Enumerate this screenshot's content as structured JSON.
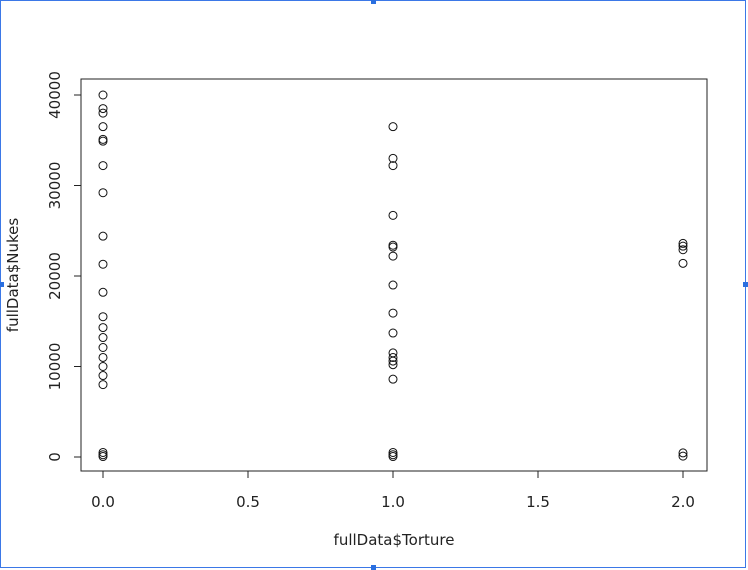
{
  "chart_data": {
    "type": "scatter",
    "title": "",
    "xlabel": "fullData$Torture",
    "ylabel": "fullData$Nukes",
    "xlim": [
      -0.1,
      2.1
    ],
    "ylim": [
      -1500,
      42000
    ],
    "x_ticks": [
      "0.0",
      "0.5",
      "1.0",
      "1.5",
      "2.0"
    ],
    "x_tick_values": [
      0,
      0.5,
      1,
      1.5,
      2
    ],
    "y_ticks": [
      "0",
      "10000",
      "20000",
      "30000",
      "40000"
    ],
    "y_tick_values": [
      0,
      10000,
      20000,
      30000,
      40000
    ],
    "grid": false,
    "marker": "open-circle",
    "series": [
      {
        "points": [
          {
            "x": 0,
            "y": 40000
          },
          {
            "x": 0,
            "y": 38500
          },
          {
            "x": 0,
            "y": 38000
          },
          {
            "x": 0,
            "y": 36500
          },
          {
            "x": 0,
            "y": 35100
          },
          {
            "x": 0,
            "y": 34900
          },
          {
            "x": 0,
            "y": 32200
          },
          {
            "x": 0,
            "y": 29200
          },
          {
            "x": 0,
            "y": 24400
          },
          {
            "x": 0,
            "y": 21300
          },
          {
            "x": 0,
            "y": 18200
          },
          {
            "x": 0,
            "y": 15500
          },
          {
            "x": 0,
            "y": 14300
          },
          {
            "x": 0,
            "y": 13200
          },
          {
            "x": 0,
            "y": 12100
          },
          {
            "x": 0,
            "y": 11000
          },
          {
            "x": 0,
            "y": 10000
          },
          {
            "x": 0,
            "y": 9000
          },
          {
            "x": 0,
            "y": 8000
          },
          {
            "x": 0,
            "y": 500
          },
          {
            "x": 0,
            "y": 250
          },
          {
            "x": 0,
            "y": 50
          },
          {
            "x": 1,
            "y": 36500
          },
          {
            "x": 1,
            "y": 33000
          },
          {
            "x": 1,
            "y": 32200
          },
          {
            "x": 1,
            "y": 26700
          },
          {
            "x": 1,
            "y": 23400
          },
          {
            "x": 1,
            "y": 23200
          },
          {
            "x": 1,
            "y": 22200
          },
          {
            "x": 1,
            "y": 19000
          },
          {
            "x": 1,
            "y": 15900
          },
          {
            "x": 1,
            "y": 13700
          },
          {
            "x": 1,
            "y": 11500
          },
          {
            "x": 1,
            "y": 11000
          },
          {
            "x": 1,
            "y": 10600
          },
          {
            "x": 1,
            "y": 10200
          },
          {
            "x": 1,
            "y": 8600
          },
          {
            "x": 1,
            "y": 500
          },
          {
            "x": 1,
            "y": 250
          },
          {
            "x": 1,
            "y": 50
          },
          {
            "x": 2,
            "y": 23600
          },
          {
            "x": 2,
            "y": 23300
          },
          {
            "x": 2,
            "y": 22900
          },
          {
            "x": 2,
            "y": 21400
          },
          {
            "x": 2,
            "y": 450
          },
          {
            "x": 2,
            "y": 100
          }
        ]
      }
    ]
  }
}
